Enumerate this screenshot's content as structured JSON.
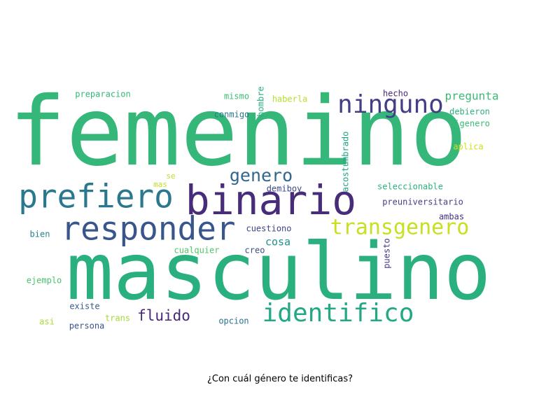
{
  "caption": "¿Con cuál género te identificas?",
  "word_cloud": {
    "words": [
      {
        "text": "femenino",
        "color": "#35b779"
      },
      {
        "text": "masculino",
        "color": "#2ab07f"
      },
      {
        "text": "binario",
        "color": "#472c7a"
      },
      {
        "text": "responder",
        "color": "#39568c"
      },
      {
        "text": "prefiero",
        "color": "#2a788e"
      },
      {
        "text": "identifico",
        "color": "#22a884"
      },
      {
        "text": "ninguno",
        "color": "#433e85"
      },
      {
        "text": "transgenero",
        "color": "#c8e020"
      },
      {
        "text": "genero",
        "color": "#31688e"
      },
      {
        "text": "fluido",
        "color": "#482878"
      },
      {
        "text": "pregunta",
        "color": "#3aba76"
      },
      {
        "text": "cosa",
        "color": "#21918c"
      },
      {
        "text": "preparacion",
        "color": "#35b779"
      },
      {
        "text": "mismo",
        "color": "#3dbc74"
      },
      {
        "text": "conmigo",
        "color": "#2a788e"
      },
      {
        "text": "hombre",
        "color": "#29af7f"
      },
      {
        "text": "haberla",
        "color": "#b5de2b"
      },
      {
        "text": "hecho",
        "color": "#482878"
      },
      {
        "text": "debieron",
        "color": "#2db27d"
      },
      {
        "text": "bigenero",
        "color": "#3aba76"
      },
      {
        "text": "acostumbrado",
        "color": "#20a386"
      },
      {
        "text": "aplica",
        "color": "#d0e11c"
      },
      {
        "text": "se",
        "color": "#bddf26"
      },
      {
        "text": "mas",
        "color": "#c2df23"
      },
      {
        "text": "demiboy",
        "color": "#3e4a89"
      },
      {
        "text": "seleccionable",
        "color": "#2db27d"
      },
      {
        "text": "preuniversitario",
        "color": "#424086"
      },
      {
        "text": "ambas",
        "color": "#46327e"
      },
      {
        "text": "bien",
        "color": "#26828e"
      },
      {
        "text": "cuestiono",
        "color": "#414487"
      },
      {
        "text": "cualquier",
        "color": "#52c569"
      },
      {
        "text": "creo",
        "color": "#3e4c8a"
      },
      {
        "text": "puesto",
        "color": "#443a83"
      },
      {
        "text": "ejemplo",
        "color": "#4ac16d"
      },
      {
        "text": "existe",
        "color": "#365c8d"
      },
      {
        "text": "asi",
        "color": "#a8db34"
      },
      {
        "text": "trans",
        "color": "#a0da39"
      },
      {
        "text": "persona",
        "color": "#3b528b"
      },
      {
        "text": "opcion",
        "color": "#2c728e"
      }
    ]
  }
}
